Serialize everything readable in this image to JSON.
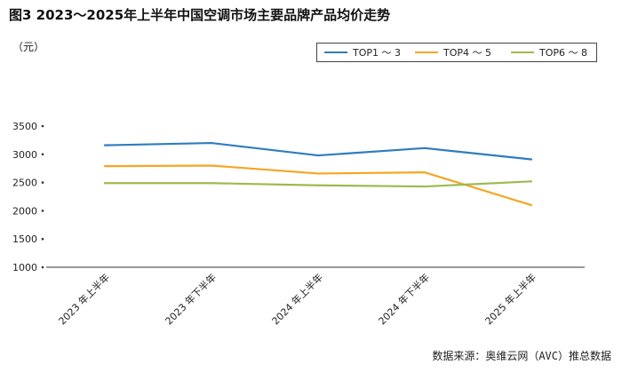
{
  "title": "图3  2023～2025年上半年中国空调市场主要品牌产品均价走势",
  "unit": "（元）",
  "source": "数据来源：奥维云网（AVC）推总数据",
  "colors": {
    "series1": "#2e7dbf",
    "series2": "#f5a623",
    "series3": "#9cba4f",
    "axis": "#333333"
  },
  "chart_data": {
    "type": "line",
    "categories": [
      "2023 年上半年",
      "2023 年下半年",
      "2024 年上半年",
      "2024 年下半年",
      "2025 年上半年"
    ],
    "ylim": [
      1000,
      3500
    ],
    "yticks": [
      1000,
      1500,
      2000,
      2500,
      3000,
      3500
    ],
    "ytick_labels": [
      "1000",
      "1500",
      "2000",
      "2500",
      "3000",
      "3500"
    ],
    "ylabel": "（元）",
    "grid": false,
    "legend_position": "top-right",
    "series": [
      {
        "name": "TOP1 ～ 3",
        "values": [
          3160,
          3200,
          2980,
          3110,
          2910
        ]
      },
      {
        "name": "TOP4 ～ 5",
        "values": [
          2790,
          2800,
          2660,
          2680,
          2100
        ]
      },
      {
        "name": "TOP6 ～ 8",
        "values": [
          2490,
          2490,
          2450,
          2430,
          2520
        ]
      }
    ]
  }
}
